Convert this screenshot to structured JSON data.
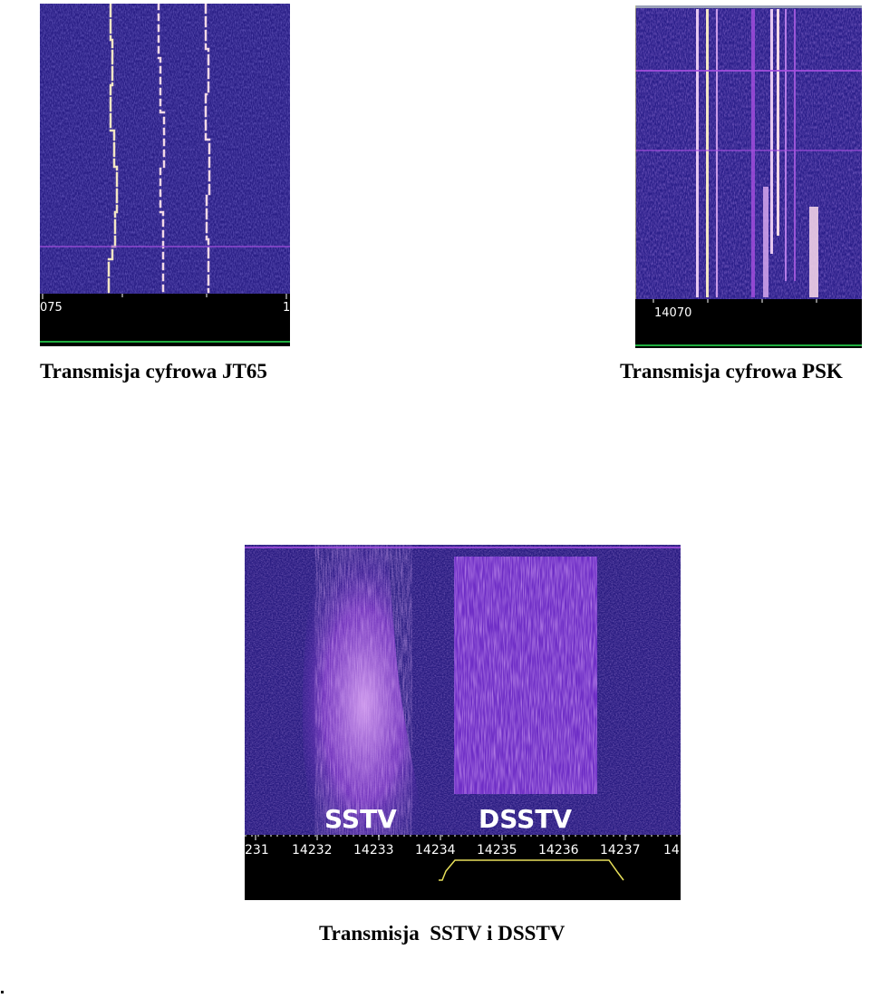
{
  "figures": [
    {
      "caption": "Transmisja cyfrowa JT65",
      "scale_labels": [
        "075",
        "1"
      ]
    },
    {
      "caption": "Transmisja cyfrowa PSK",
      "scale_labels": [
        "14070"
      ]
    },
    {
      "caption": "Transmisja  SSTV i DSSTV",
      "overlay_labels": [
        "SSTV",
        "DSSTV"
      ],
      "scale_labels": [
        "231",
        "14232",
        "14233",
        "14234",
        "14235",
        "14236",
        "14237",
        "14"
      ]
    }
  ],
  "colors": {
    "waterfall_background": "#2a1f86",
    "signal_bright": "#f3d9e6",
    "signal_purple": "#a64fe0",
    "scale_background": "#000000",
    "scale_text": "#ffffff",
    "green_line": "#1fae3f",
    "yellow_trace": "#e8e05a"
  }
}
